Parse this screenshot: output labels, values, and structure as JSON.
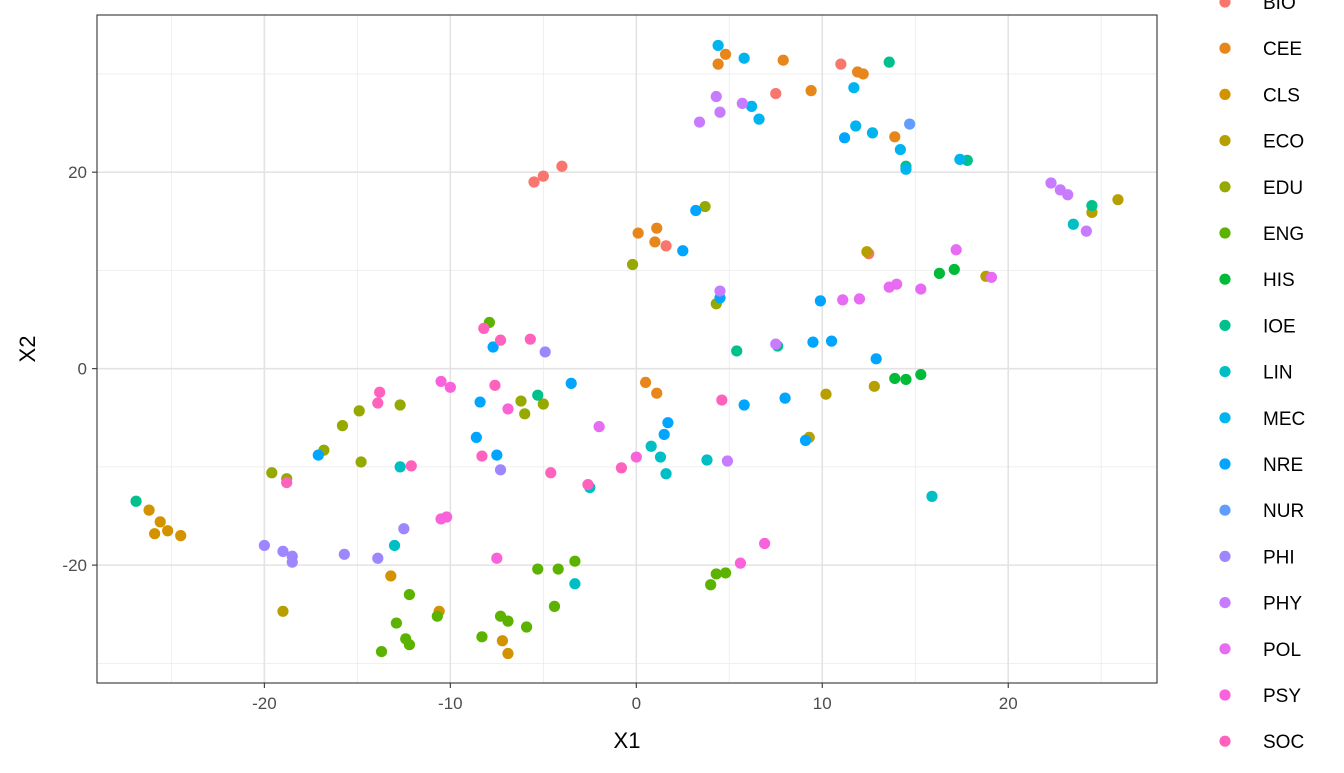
{
  "chart_data": {
    "type": "scatter",
    "xlabel": "X1",
    "ylabel": "X2",
    "xlim": [
      -29,
      28
    ],
    "ylim": [
      -32,
      36
    ],
    "xticks": [
      -20,
      -10,
      0,
      10,
      20
    ],
    "yticks": [
      -20,
      0,
      20
    ],
    "xtick_labels": [
      "-20",
      "-10",
      "0",
      "10",
      "20"
    ],
    "ytick_labels": [
      "-20",
      "0",
      "20"
    ],
    "grid": true,
    "legend_position": "right",
    "series": [
      {
        "name": "BIO",
        "color": "#F8766D",
        "points": [
          [
            -5.5,
            19
          ],
          [
            -5,
            19.6
          ],
          [
            -4,
            20.6
          ],
          [
            11,
            31
          ],
          [
            7.5,
            28
          ],
          [
            1.6,
            12.5
          ],
          [
            12.5,
            11.7
          ]
        ]
      },
      {
        "name": "CEE",
        "color": "#E7861B",
        "points": [
          [
            4.4,
            31
          ],
          [
            4.8,
            32
          ],
          [
            7.9,
            31.4
          ],
          [
            9.4,
            28.3
          ],
          [
            11.9,
            30.2
          ],
          [
            12.2,
            30
          ],
          [
            13.9,
            23.6
          ],
          [
            0.1,
            13.8
          ],
          [
            1.1,
            14.3
          ],
          [
            1,
            12.9
          ],
          [
            0.5,
            -1.4
          ],
          [
            1.1,
            -2.5
          ]
        ]
      },
      {
        "name": "CLS",
        "color": "#D39200",
        "points": [
          [
            -26.2,
            -14.4
          ],
          [
            -25.9,
            -16.8
          ],
          [
            -25.6,
            -15.6
          ],
          [
            -25.2,
            -16.5
          ],
          [
            -24.5,
            -17
          ],
          [
            -13.2,
            -21.1
          ],
          [
            -10.6,
            -24.7
          ],
          [
            -7.2,
            -27.7
          ],
          [
            -6.9,
            -29
          ]
        ]
      },
      {
        "name": "ECO",
        "color": "#B79F00",
        "points": [
          [
            -19,
            -24.7
          ],
          [
            24.5,
            15.9
          ],
          [
            25.9,
            17.2
          ],
          [
            18.8,
            9.4
          ],
          [
            12.4,
            11.9
          ],
          [
            12.8,
            -1.8
          ],
          [
            10.2,
            -2.6
          ],
          [
            9.3,
            -7
          ]
        ]
      },
      {
        "name": "EDU",
        "color": "#95A900",
        "points": [
          [
            -19.6,
            -10.6
          ],
          [
            -18.8,
            -11.2
          ],
          [
            -16.8,
            -8.3
          ],
          [
            -15.8,
            -5.8
          ],
          [
            -14.9,
            -4.3
          ],
          [
            -14.8,
            -9.5
          ],
          [
            -12.7,
            -3.7
          ],
          [
            -6.2,
            -3.3
          ],
          [
            -6,
            -4.6
          ],
          [
            -5,
            -3.6
          ],
          [
            -0.2,
            10.6
          ],
          [
            3.7,
            16.5
          ],
          [
            4.3,
            6.6
          ]
        ]
      },
      {
        "name": "ENG",
        "color": "#5BB300",
        "points": [
          [
            -13.7,
            -28.8
          ],
          [
            -12.9,
            -25.9
          ],
          [
            -12.4,
            -27.5
          ],
          [
            -12.2,
            -28.1
          ],
          [
            -12.2,
            -23
          ],
          [
            -10.7,
            -25.2
          ],
          [
            -8.3,
            -27.3
          ],
          [
            -7.3,
            -25.2
          ],
          [
            -6.9,
            -25.7
          ],
          [
            -5.3,
            -20.4
          ],
          [
            -4.2,
            -20.4
          ],
          [
            -3.3,
            -19.6
          ],
          [
            -4.4,
            -24.2
          ],
          [
            -5.9,
            -26.3
          ],
          [
            4.0,
            -22
          ],
          [
            4.3,
            -20.9
          ],
          [
            4.8,
            -20.8
          ],
          [
            -7.9,
            4.7
          ]
        ]
      },
      {
        "name": "HIS",
        "color": "#00BA38",
        "points": [
          [
            16.3,
            9.7
          ],
          [
            17.1,
            10.1
          ],
          [
            13.9,
            -1
          ],
          [
            14.5,
            -1.1
          ],
          [
            15.3,
            -0.6
          ]
        ]
      },
      {
        "name": "IOE",
        "color": "#00C08B",
        "points": [
          [
            -26.9,
            -13.5
          ],
          [
            13.6,
            31.2
          ],
          [
            17.8,
            21.2
          ],
          [
            14.5,
            20.6
          ],
          [
            24.5,
            16.6
          ],
          [
            -5.3,
            -2.7
          ],
          [
            5.4,
            1.8
          ],
          [
            7.6,
            2.3
          ]
        ]
      },
      {
        "name": "LIN",
        "color": "#00BFC4",
        "points": [
          [
            -12.7,
            -10
          ],
          [
            -13,
            -18
          ],
          [
            -3.3,
            -21.9
          ],
          [
            -2.5,
            -12.1
          ],
          [
            0.8,
            -7.9
          ],
          [
            1.3,
            -9
          ],
          [
            1.6,
            -10.7
          ],
          [
            3.8,
            -9.3
          ],
          [
            23.5,
            14.7
          ],
          [
            15.9,
            -13
          ]
        ]
      },
      {
        "name": "MEC",
        "color": "#00B4EF",
        "points": [
          [
            4.4,
            32.9
          ],
          [
            5.8,
            31.6
          ],
          [
            6.2,
            26.7
          ],
          [
            6.6,
            25.4
          ],
          [
            11.7,
            28.6
          ],
          [
            11.8,
            24.7
          ],
          [
            12.7,
            24
          ],
          [
            14.2,
            22.3
          ],
          [
            14.5,
            20.3
          ],
          [
            17.4,
            21.3
          ]
        ]
      },
      {
        "name": "NRE",
        "color": "#00A5FF",
        "points": [
          [
            -17.1,
            -8.8
          ],
          [
            -8.6,
            -7
          ],
          [
            -8.4,
            -3.4
          ],
          [
            -7.7,
            2.2
          ],
          [
            -7.5,
            -8.8
          ],
          [
            -3.5,
            -1.5
          ],
          [
            1.5,
            -6.7
          ],
          [
            1.7,
            -5.5
          ],
          [
            2.5,
            12
          ],
          [
            3.2,
            16.1
          ],
          [
            4.5,
            7.2
          ],
          [
            5.8,
            -3.7
          ],
          [
            8,
            -3
          ],
          [
            9.1,
            -7.3
          ],
          [
            9.5,
            2.7
          ],
          [
            9.9,
            6.9
          ],
          [
            10.5,
            2.8
          ],
          [
            11.2,
            23.5
          ],
          [
            12.9,
            1
          ]
        ]
      },
      {
        "name": "NUR",
        "color": "#619CFF",
        "points": [
          [
            14.7,
            24.9
          ]
        ]
      },
      {
        "name": "PHI",
        "color": "#9E86FF",
        "points": [
          [
            -20,
            -18
          ],
          [
            -19,
            -18.6
          ],
          [
            -18.5,
            -19.1
          ],
          [
            -18.5,
            -19.7
          ],
          [
            -15.7,
            -18.9
          ],
          [
            -13.9,
            -19.3
          ],
          [
            -12.5,
            -16.3
          ],
          [
            -7.3,
            -10.3
          ],
          [
            -4.9,
            1.7
          ]
        ]
      },
      {
        "name": "PHY",
        "color": "#C77CFF",
        "points": [
          [
            3.4,
            25.1
          ],
          [
            4.3,
            27.7
          ],
          [
            4.5,
            26.1
          ],
          [
            5.7,
            27
          ],
          [
            4.5,
            7.9
          ],
          [
            4.9,
            -9.4
          ],
          [
            22.3,
            18.9
          ],
          [
            22.8,
            18.2
          ],
          [
            23.2,
            17.7
          ],
          [
            24.2,
            14
          ],
          [
            7.5,
            2.5
          ]
        ]
      },
      {
        "name": "POL",
        "color": "#E76BF3",
        "points": [
          [
            -2,
            -5.9
          ],
          [
            11.1,
            7
          ],
          [
            12,
            7.1
          ],
          [
            13.6,
            8.3
          ],
          [
            14,
            8.6
          ],
          [
            15.3,
            8.1
          ],
          [
            17.2,
            12.1
          ],
          [
            19.1,
            9.3
          ]
        ]
      },
      {
        "name": "PSY",
        "color": "#FA62DB",
        "points": [
          [
            -10.5,
            -1.3
          ],
          [
            -10.5,
            -15.3
          ],
          [
            -10.2,
            -15.1
          ],
          [
            -10,
            -1.9
          ],
          [
            -7.5,
            -19.3
          ],
          [
            -6.9,
            -4.1
          ],
          [
            0,
            -9
          ],
          [
            5.6,
            -19.8
          ],
          [
            6.9,
            -17.8
          ]
        ]
      },
      {
        "name": "SOC",
        "color": "#FF62BC",
        "points": [
          [
            -18.8,
            -11.6
          ],
          [
            -13.9,
            -3.5
          ],
          [
            -13.8,
            -2.4
          ],
          [
            -12.1,
            -9.9
          ],
          [
            -8.2,
            4.1
          ],
          [
            -8.3,
            -8.9
          ],
          [
            -7.6,
            -1.7
          ],
          [
            -7.3,
            2.9
          ],
          [
            -5.7,
            3
          ],
          [
            -4.6,
            -10.6
          ],
          [
            -2.6,
            -11.8
          ],
          [
            -0.8,
            -10.1
          ],
          [
            4.6,
            -3.2
          ]
        ]
      }
    ]
  }
}
